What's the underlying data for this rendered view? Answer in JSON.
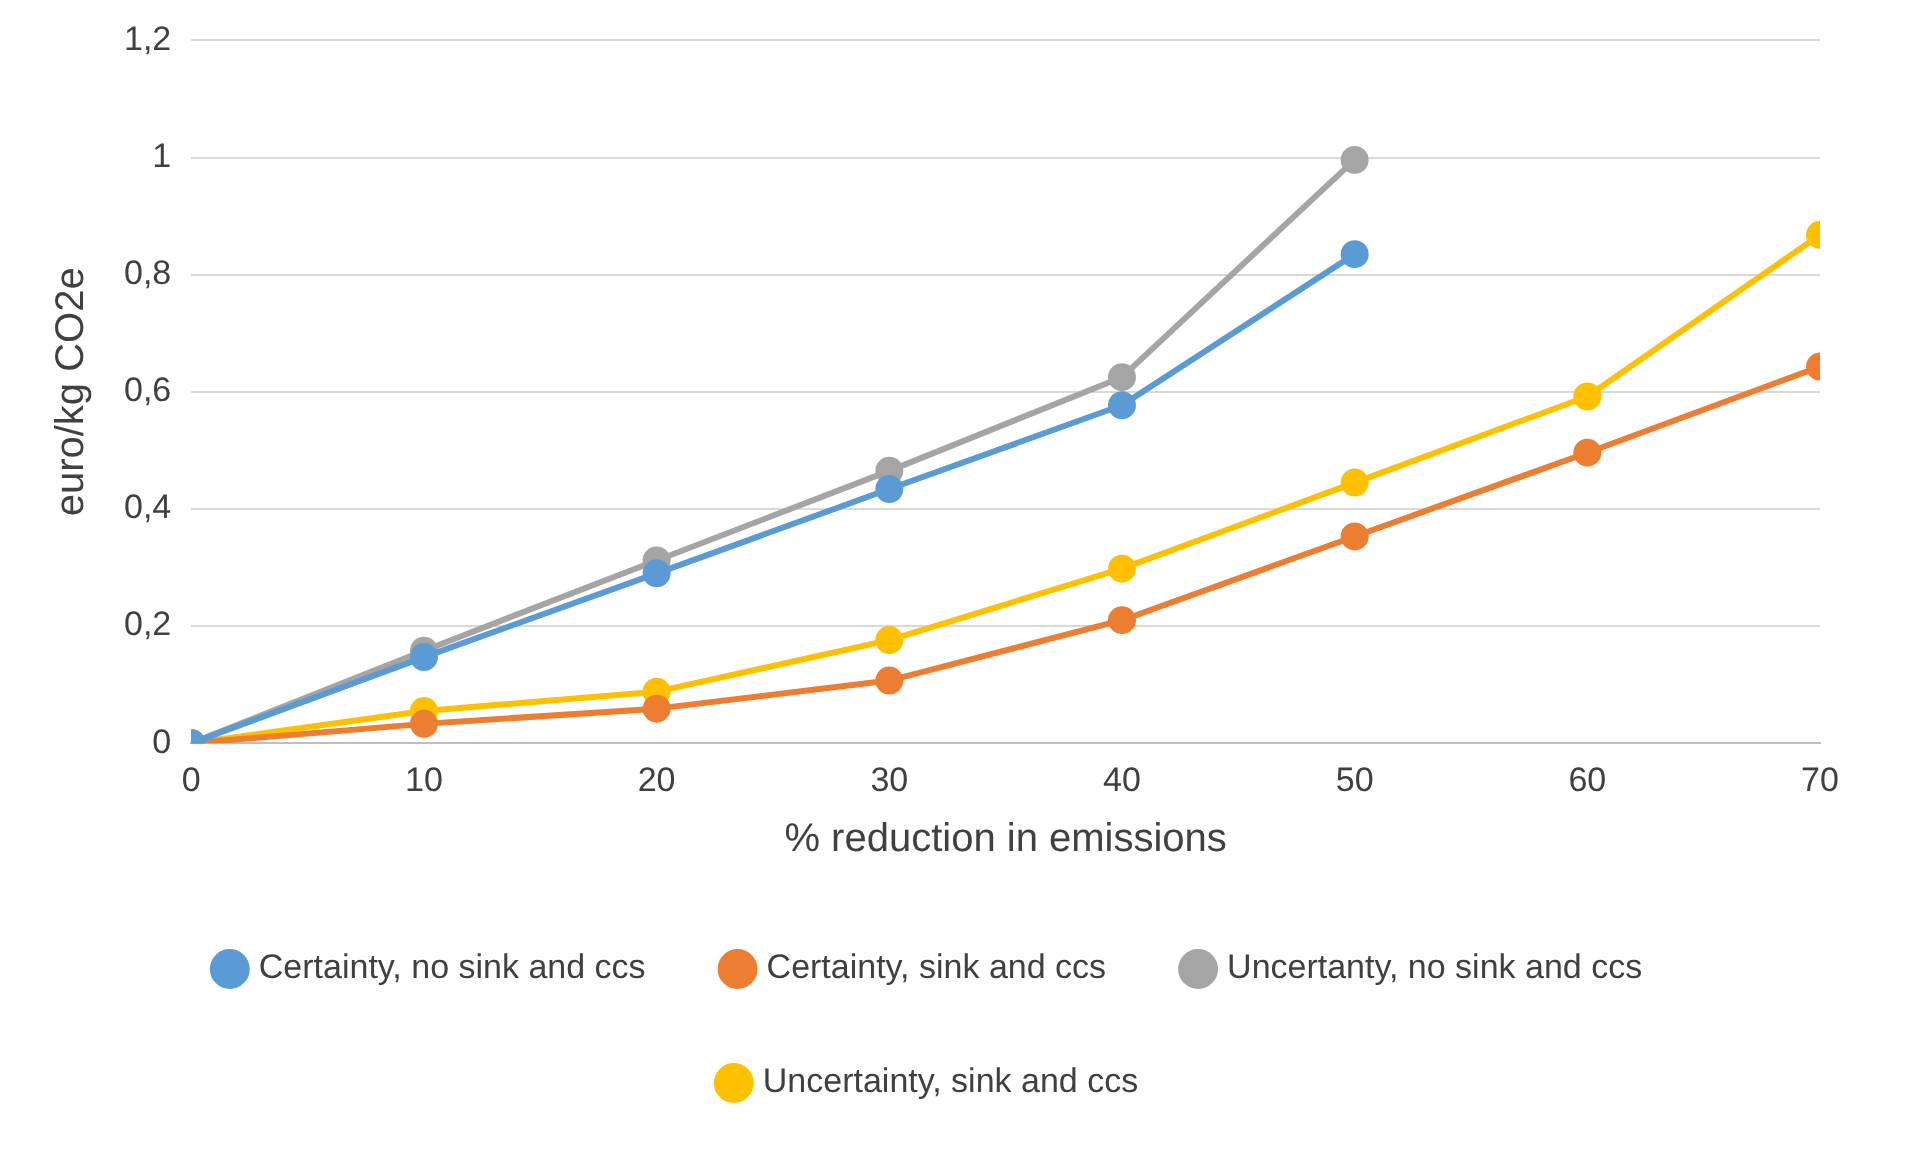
{
  "chart_data": {
    "type": "line",
    "xlabel": "% reduction in emissions",
    "ylabel": "euro/kg CO2e",
    "x": [
      0,
      10,
      20,
      30,
      40,
      50,
      60,
      70
    ],
    "series": [
      {
        "name": "Certainty, no sink and ccs",
        "color": "#5b9bd5",
        "values": [
          0,
          0.147,
          0.29,
          0.434,
          0.577,
          0.835,
          null,
          null
        ]
      },
      {
        "name": "Certainty, sink and ccs",
        "color": "#ed7d31",
        "values": [
          0,
          0.033,
          0.059,
          0.107,
          0.21,
          0.353,
          0.496,
          0.643
        ]
      },
      {
        "name": "Uncertanty, no sink and ccs",
        "color": "#a5a5a5",
        "values": [
          0,
          0.158,
          0.312,
          0.465,
          0.625,
          0.996,
          null,
          null
        ]
      },
      {
        "name": "Uncertainty, sink and ccs",
        "color": "#ffc000",
        "values": [
          0,
          0.055,
          0.088,
          0.176,
          0.298,
          0.445,
          0.592,
          0.868
        ]
      }
    ],
    "xlim": [
      0,
      70
    ],
    "xticks": [
      0,
      10,
      20,
      30,
      40,
      50,
      60,
      70
    ],
    "ylim": [
      0,
      1.2
    ],
    "yticks": [
      0,
      {
        "value": 0.2,
        "label": "0,2"
      },
      {
        "value": 0.4,
        "label": "0,4"
      },
      {
        "value": 0.6,
        "label": "0,6"
      },
      {
        "value": 0.8,
        "label": "0,8"
      },
      1,
      {
        "value": 1.2,
        "label": "1,2"
      }
    ],
    "grid": "y",
    "legend": "bottom",
    "marker": "circle",
    "line_style": "solid"
  }
}
